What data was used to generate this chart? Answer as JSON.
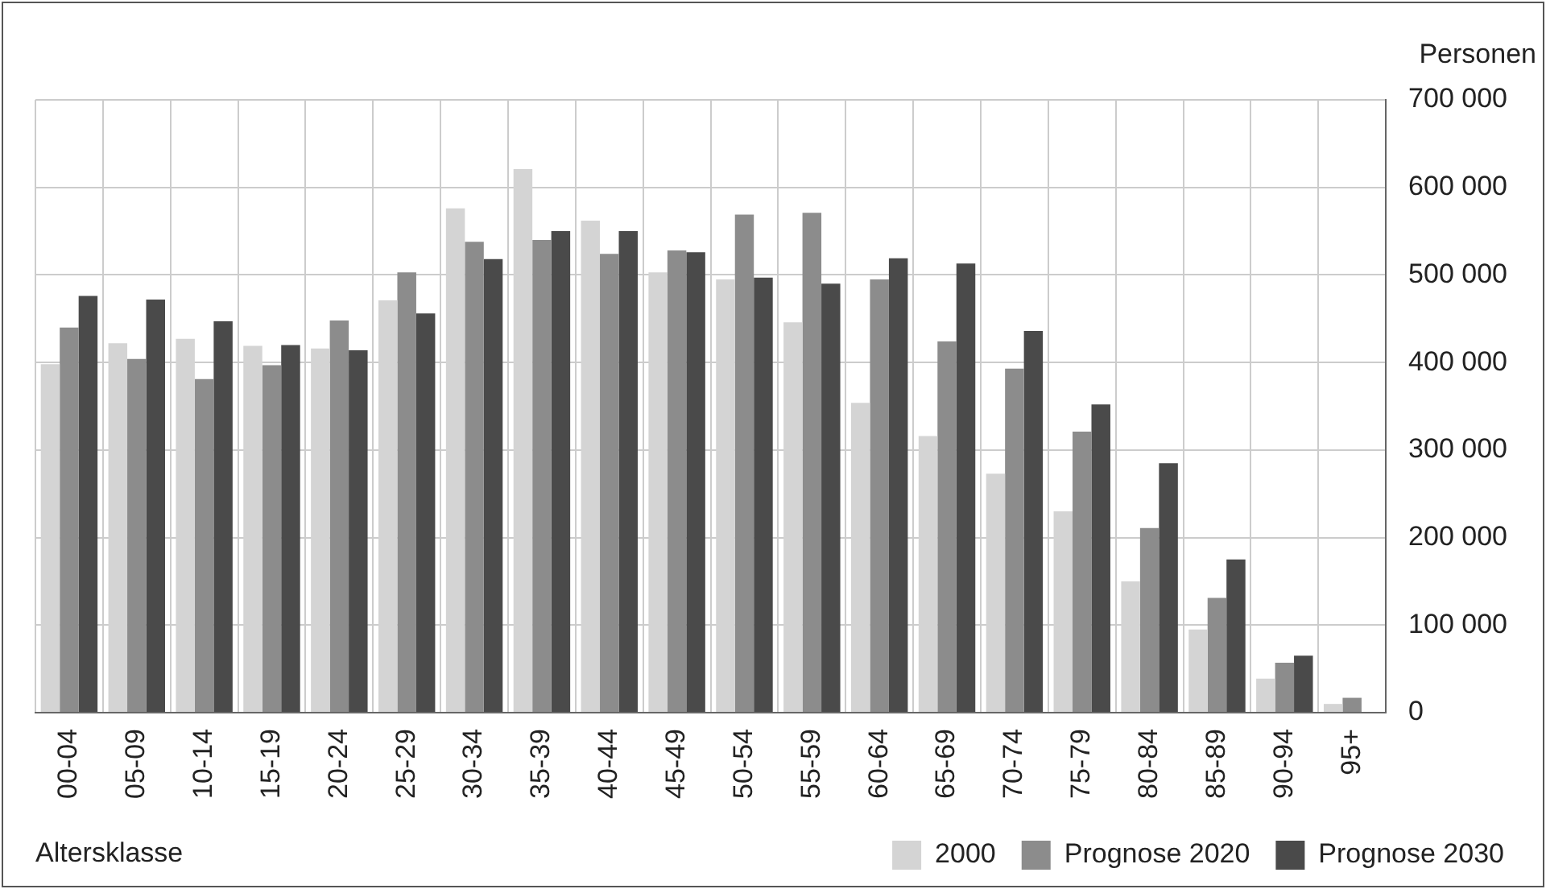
{
  "chart_data": {
    "type": "bar",
    "xlabel": "Altersklasse",
    "ylabel": "Personen",
    "categories": [
      "00-04",
      "05-09",
      "10-14",
      "15-19",
      "20-24",
      "25-29",
      "30-34",
      "35-39",
      "40-44",
      "45-49",
      "50-54",
      "55-59",
      "60-64",
      "65-69",
      "70-74",
      "75-79",
      "80-84",
      "85-89",
      "90-94",
      "95+"
    ],
    "series": [
      {
        "name": "2000",
        "color": "#d4d4d4",
        "values": [
          398000,
          422000,
          427000,
          419000,
          416000,
          471000,
          576000,
          621000,
          562000,
          503000,
          495000,
          446000,
          354000,
          316000,
          273000,
          230000,
          150000,
          95000,
          39000,
          10000
        ]
      },
      {
        "name": "Prognose 2020",
        "color": "#8c8c8c",
        "values": [
          440000,
          404000,
          381000,
          397000,
          448000,
          503000,
          538000,
          540000,
          524000,
          528000,
          569000,
          571000,
          495000,
          424000,
          393000,
          321000,
          211000,
          131000,
          57000,
          17000
        ]
      },
      {
        "name": "Prognose 2030",
        "color": "#4a4a4a",
        "values": [
          476000,
          472000,
          447000,
          420000,
          414000,
          456000,
          518000,
          550000,
          550000,
          526000,
          497000,
          490000,
          519000,
          513000,
          436000,
          352000,
          285000,
          175000,
          65000,
          null
        ]
      }
    ],
    "ylim": [
      0,
      700000
    ],
    "yticks": [
      0,
      {
        "value": 100000,
        "label": "100 000"
      },
      {
        "value": 200000,
        "label": "200 000"
      },
      {
        "value": 300000,
        "label": "300 000"
      },
      {
        "value": 400000,
        "label": "400 000"
      },
      {
        "value": 500000,
        "label": "500 000"
      },
      {
        "value": 600000,
        "label": "600 000"
      },
      {
        "value": 700000,
        "label": "700 000"
      }
    ],
    "grid": true,
    "legend": "bottom right"
  }
}
